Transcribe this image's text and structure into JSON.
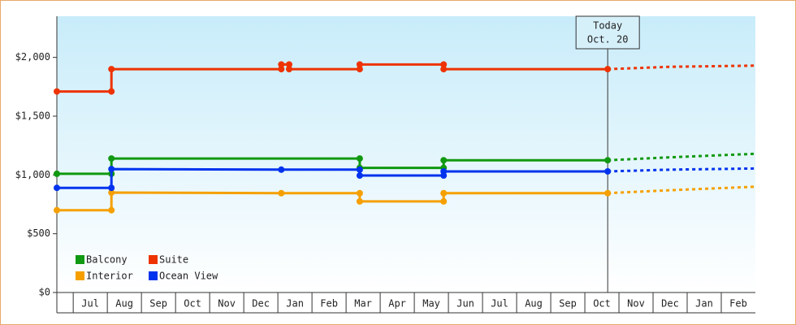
{
  "chart_data": {
    "type": "step-line",
    "categories": [
      null,
      "Jul",
      "Aug",
      "Sep",
      "Oct",
      "Nov",
      "Dec",
      "Jan",
      "Feb",
      "Mar",
      "Apr",
      "May",
      "Jun",
      "Jul",
      "Aug",
      "Sep",
      "Oct",
      "Nov",
      "Dec",
      "Jan",
      "Feb"
    ],
    "xlim": [
      0.52,
      21
    ],
    "ylim": [
      0,
      2350
    ],
    "yticks": [
      {
        "value": 0,
        "label": "$0"
      },
      {
        "value": 500,
        "label": "$500"
      },
      {
        "value": 1000,
        "label": "$1,000"
      },
      {
        "value": 1500,
        "label": "$1,500"
      },
      {
        "value": 2000,
        "label": "$2,000"
      }
    ],
    "annotation": {
      "x": 16.67,
      "lines": [
        "Today",
        "Oct. 20"
      ]
    },
    "legend": "bottom-left",
    "series": [
      {
        "name": "Balcony",
        "color": "#119911",
        "x": [
          0.52,
          2.12,
          2.12,
          9.4,
          9.4,
          11.86,
          11.86,
          16.67
        ],
        "values": [
          1010,
          1010,
          1140,
          1140,
          1060,
          1060,
          1125,
          1125
        ],
        "forecast_x": [
          16.67,
          18.5,
          21
        ],
        "forecast_values": [
          1125,
          1150,
          1180
        ]
      },
      {
        "name": "Suite",
        "color": "#ee3300",
        "x": [
          0.52,
          2.12,
          2.12,
          7.1,
          7.1,
          7.33,
          7.33,
          9.4,
          9.4,
          11.86,
          11.86,
          16.67
        ],
        "values": [
          1710,
          1710,
          1900,
          1900,
          1940,
          1940,
          1900,
          1900,
          1940,
          1940,
          1900,
          1900
        ],
        "forecast_x": [
          16.67,
          18.5,
          21
        ],
        "forecast_values": [
          1900,
          1920,
          1930
        ]
      },
      {
        "name": "Interior",
        "color": "#f5a000",
        "x": [
          0.52,
          2.12,
          2.12,
          7.1,
          9.4,
          9.4,
          11.86,
          11.86,
          16.67
        ],
        "values": [
          700,
          700,
          850,
          845,
          845,
          775,
          775,
          845,
          845
        ],
        "forecast_x": [
          16.67,
          18.5,
          21
        ],
        "forecast_values": [
          845,
          870,
          900
        ]
      },
      {
        "name": "Ocean View",
        "color": "#0033ee",
        "x": [
          0.52,
          2.12,
          2.12,
          7.1,
          9.4,
          9.4,
          11.86,
          11.86,
          16.67
        ],
        "values": [
          890,
          890,
          1050,
          1045,
          1045,
          995,
          995,
          1030,
          1030
        ],
        "forecast_x": [
          16.67,
          18.5,
          21
        ],
        "forecast_values": [
          1030,
          1045,
          1055
        ]
      }
    ]
  }
}
